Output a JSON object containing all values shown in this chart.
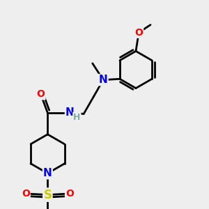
{
  "bg_color": "#eeeeee",
  "bond_color": "#000000",
  "bond_width": 2.0,
  "atom_colors": {
    "N": "#0000ff",
    "O": "#ff0000",
    "S": "#cccc00",
    "H": "#7faaaa",
    "C": "#000000"
  },
  "figsize": [
    3.0,
    3.0
  ],
  "dpi": 100
}
